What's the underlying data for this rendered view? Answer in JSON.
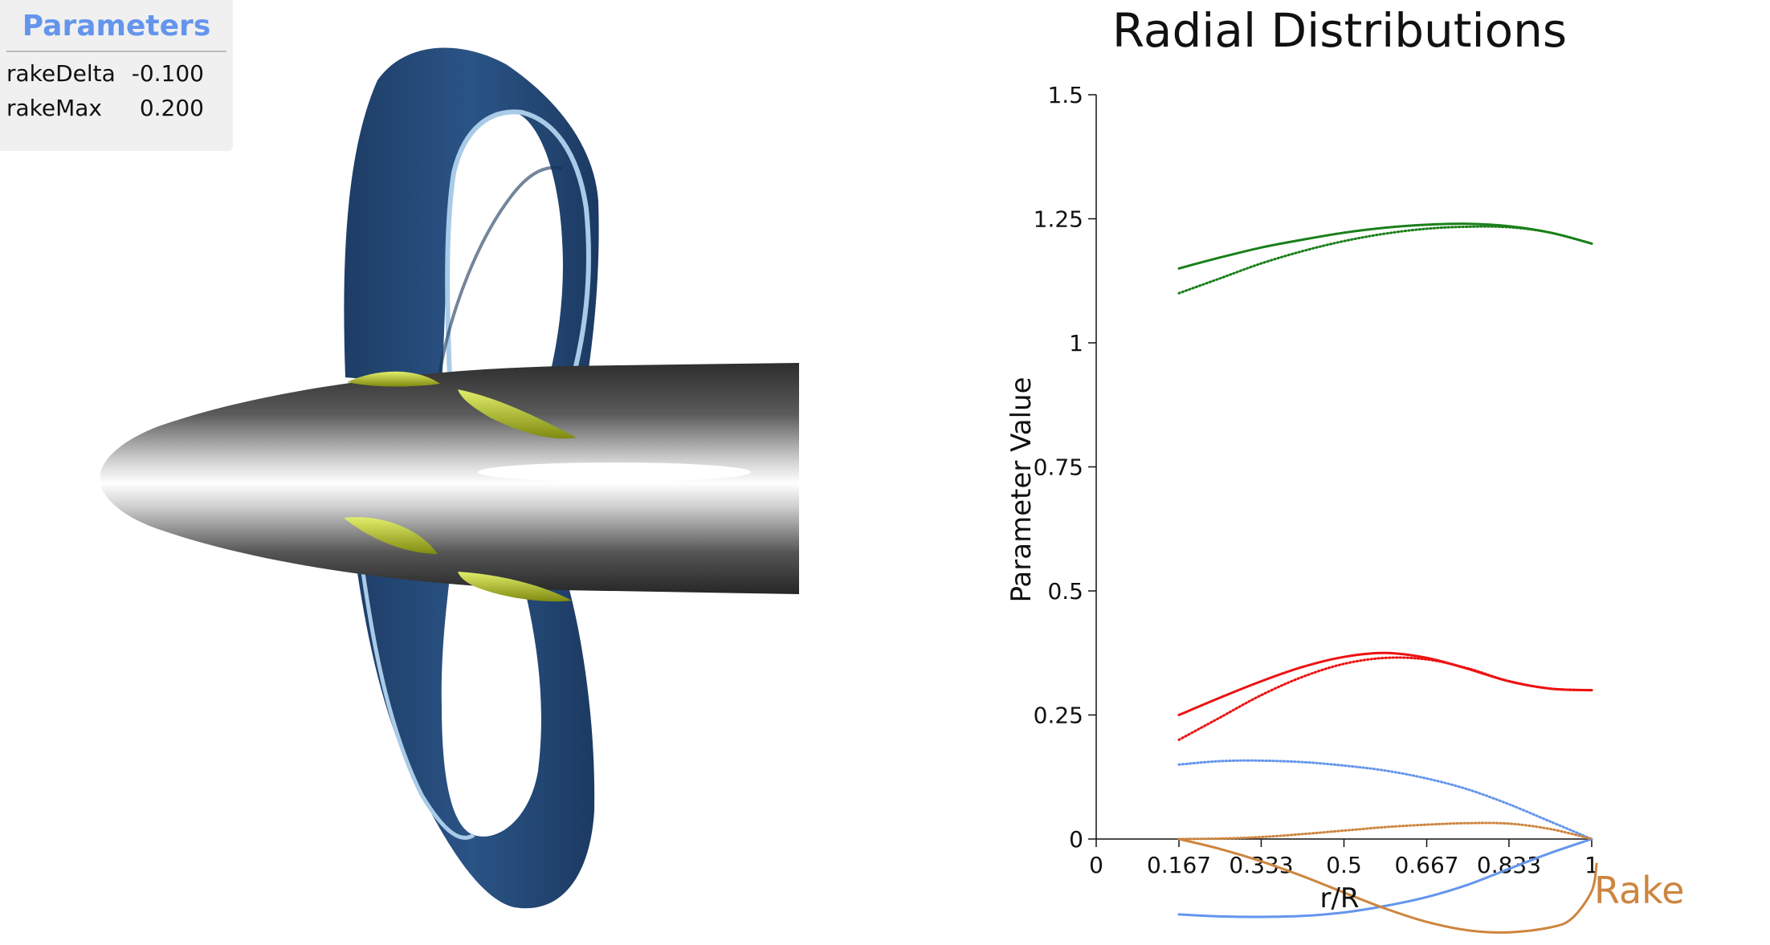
{
  "params": {
    "title": "Parameters",
    "rows": [
      {
        "name": "rakeDelta",
        "value": "-0.100"
      },
      {
        "name": "rakeMax",
        "value": "0.200"
      }
    ]
  },
  "scene": {
    "description_colors": {
      "blade": "#2a4f7e",
      "blade_edge": "#a9cbe8",
      "root_fillet": "#b5c421",
      "hub_dark": "#2b2b2b",
      "hub_light": "#ffffff"
    }
  },
  "chart_data": {
    "type": "line",
    "title": "Radial Distributions",
    "xlabel": "r/R",
    "ylabel": "Parameter Value",
    "xlim": [
      0,
      1
    ],
    "ylim": [
      -0.2,
      1.5
    ],
    "xticks": [
      0,
      0.167,
      0.333,
      0.5,
      0.667,
      0.833,
      1
    ],
    "xtick_labels": [
      "0",
      "0.167",
      "0.333",
      "0.5",
      "0.667",
      "0.833",
      "1"
    ],
    "yticks": [
      0,
      0.25,
      0.5,
      0.75,
      1,
      1.25,
      1.5
    ],
    "ytick_labels": [
      "0",
      "0.25",
      "0.5",
      "0.75",
      "1",
      "1.25",
      "1.5"
    ],
    "annotations": [
      {
        "text": "Rake",
        "color": "#cd853f",
        "x": 1.02,
        "y": -0.11
      }
    ],
    "series": [
      {
        "color": "#1a7f1a",
        "style": "solid",
        "x": [
          0.167,
          0.25,
          0.333,
          0.417,
          0.5,
          0.583,
          0.667,
          0.75,
          0.833,
          0.917,
          1.0
        ],
        "y": [
          1.15,
          1.172,
          1.192,
          1.208,
          1.222,
          1.232,
          1.238,
          1.24,
          1.235,
          1.222,
          1.2
        ]
      },
      {
        "color": "#1a7f1a",
        "style": "dotted",
        "x": [
          0.167,
          0.25,
          0.333,
          0.417,
          0.5,
          0.583,
          0.667,
          0.75,
          0.833,
          0.917,
          1.0
        ],
        "y": [
          1.1,
          1.13,
          1.16,
          1.185,
          1.205,
          1.22,
          1.23,
          1.234,
          1.233,
          1.222,
          1.2
        ]
      },
      {
        "color": "#ee1111",
        "style": "solid",
        "x": [
          0.167,
          0.25,
          0.333,
          0.417,
          0.5,
          0.583,
          0.667,
          0.75,
          0.833,
          0.917,
          1.0
        ],
        "y": [
          0.25,
          0.285,
          0.318,
          0.347,
          0.367,
          0.375,
          0.365,
          0.343,
          0.318,
          0.303,
          0.3
        ]
      },
      {
        "color": "#ee1111",
        "style": "dotted",
        "x": [
          0.167,
          0.25,
          0.333,
          0.417,
          0.5,
          0.583,
          0.667,
          0.75,
          0.833,
          0.917,
          1.0
        ],
        "y": [
          0.2,
          0.245,
          0.29,
          0.327,
          0.353,
          0.365,
          0.362,
          0.344,
          0.318,
          0.303,
          0.3
        ]
      },
      {
        "color": "#6495ed",
        "style": "dotted",
        "x": [
          0.167,
          0.25,
          0.333,
          0.417,
          0.5,
          0.583,
          0.667,
          0.75,
          0.833,
          0.917,
          1.0
        ],
        "y": [
          0.15,
          0.157,
          0.158,
          0.155,
          0.148,
          0.138,
          0.122,
          0.1,
          0.07,
          0.035,
          0.0
        ]
      },
      {
        "color": "#6495ed",
        "style": "solid",
        "x": [
          0.167,
          0.25,
          0.333,
          0.417,
          0.5,
          0.583,
          0.667,
          0.75,
          0.833,
          0.917,
          1.0
        ],
        "y": [
          -0.152,
          -0.156,
          -0.157,
          -0.155,
          -0.148,
          -0.135,
          -0.117,
          -0.092,
          -0.06,
          -0.028,
          0.0
        ]
      },
      {
        "color": "#cd853f",
        "style": "dotted",
        "x": [
          0.167,
          0.25,
          0.333,
          0.417,
          0.5,
          0.583,
          0.667,
          0.75,
          0.833,
          0.917,
          1.0
        ],
        "y": [
          0.0,
          0.001,
          0.004,
          0.01,
          0.017,
          0.024,
          0.029,
          0.032,
          0.031,
          0.02,
          0.0
        ]
      },
      {
        "color": "#cd853f",
        "style": "solid",
        "x": [
          0.167,
          0.25,
          0.333,
          0.417,
          0.5,
          0.583,
          0.667,
          0.75,
          0.833,
          0.917,
          0.96,
          1.0,
          1.01
        ],
        "y": [
          0.0,
          -0.02,
          -0.045,
          -0.075,
          -0.108,
          -0.14,
          -0.167,
          -0.184,
          -0.188,
          -0.178,
          -0.16,
          -0.105,
          -0.05
        ]
      }
    ]
  }
}
